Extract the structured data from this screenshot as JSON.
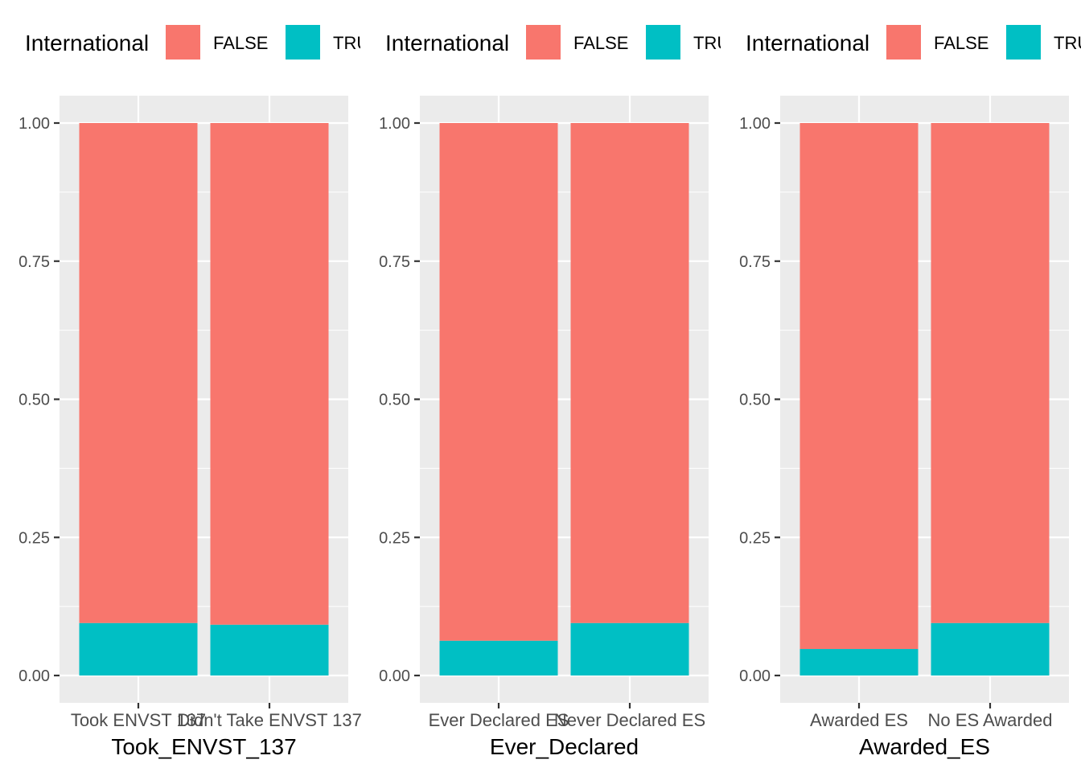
{
  "chart_data": [
    {
      "type": "bar",
      "stacked": true,
      "categories": [
        "Took ENVST 137",
        "Didn't Take ENVST 137"
      ],
      "xlabel": "Took_ENVST_137",
      "ylabel": "",
      "ylim": [
        0,
        1
      ],
      "yticks": [
        "0.00",
        "0.25",
        "0.50",
        "0.75",
        "1.00"
      ],
      "legend": {
        "title": "International",
        "position": "top",
        "entries": [
          "FALSE",
          "TRUE"
        ]
      },
      "series": [
        {
          "name": "TRUE",
          "color": "#00BFC4",
          "values": [
            0.095,
            0.092
          ]
        },
        {
          "name": "FALSE",
          "color": "#F8766D",
          "values": [
            0.905,
            0.908
          ]
        }
      ],
      "grid": true
    },
    {
      "type": "bar",
      "stacked": true,
      "categories": [
        "Ever Declared ES",
        "Never Declared ES"
      ],
      "xlabel": "Ever_Declared",
      "ylabel": "",
      "ylim": [
        0,
        1
      ],
      "yticks": [
        "0.00",
        "0.25",
        "0.50",
        "0.75",
        "1.00"
      ],
      "legend": {
        "title": "International",
        "position": "top",
        "entries": [
          "FALSE",
          "TRUE"
        ]
      },
      "series": [
        {
          "name": "TRUE",
          "color": "#00BFC4",
          "values": [
            0.063,
            0.095
          ]
        },
        {
          "name": "FALSE",
          "color": "#F8766D",
          "values": [
            0.937,
            0.905
          ]
        }
      ],
      "grid": true
    },
    {
      "type": "bar",
      "stacked": true,
      "categories": [
        "Awarded ES",
        "No ES Awarded"
      ],
      "xlabel": "Awarded_ES",
      "ylabel": "",
      "ylim": [
        0,
        1
      ],
      "yticks": [
        "0.00",
        "0.25",
        "0.50",
        "0.75",
        "1.00"
      ],
      "legend": {
        "title": "International",
        "position": "top",
        "entries": [
          "FALSE",
          "TRUE"
        ]
      },
      "series": [
        {
          "name": "TRUE",
          "color": "#00BFC4",
          "values": [
            0.048,
            0.095
          ]
        },
        {
          "name": "FALSE",
          "color": "#F8766D",
          "values": [
            0.952,
            0.905
          ]
        }
      ],
      "grid": true
    }
  ],
  "theme": {
    "panel_bg": "#EBEBEB",
    "grid_color": "#FFFFFF",
    "tick_color": "#333333"
  }
}
